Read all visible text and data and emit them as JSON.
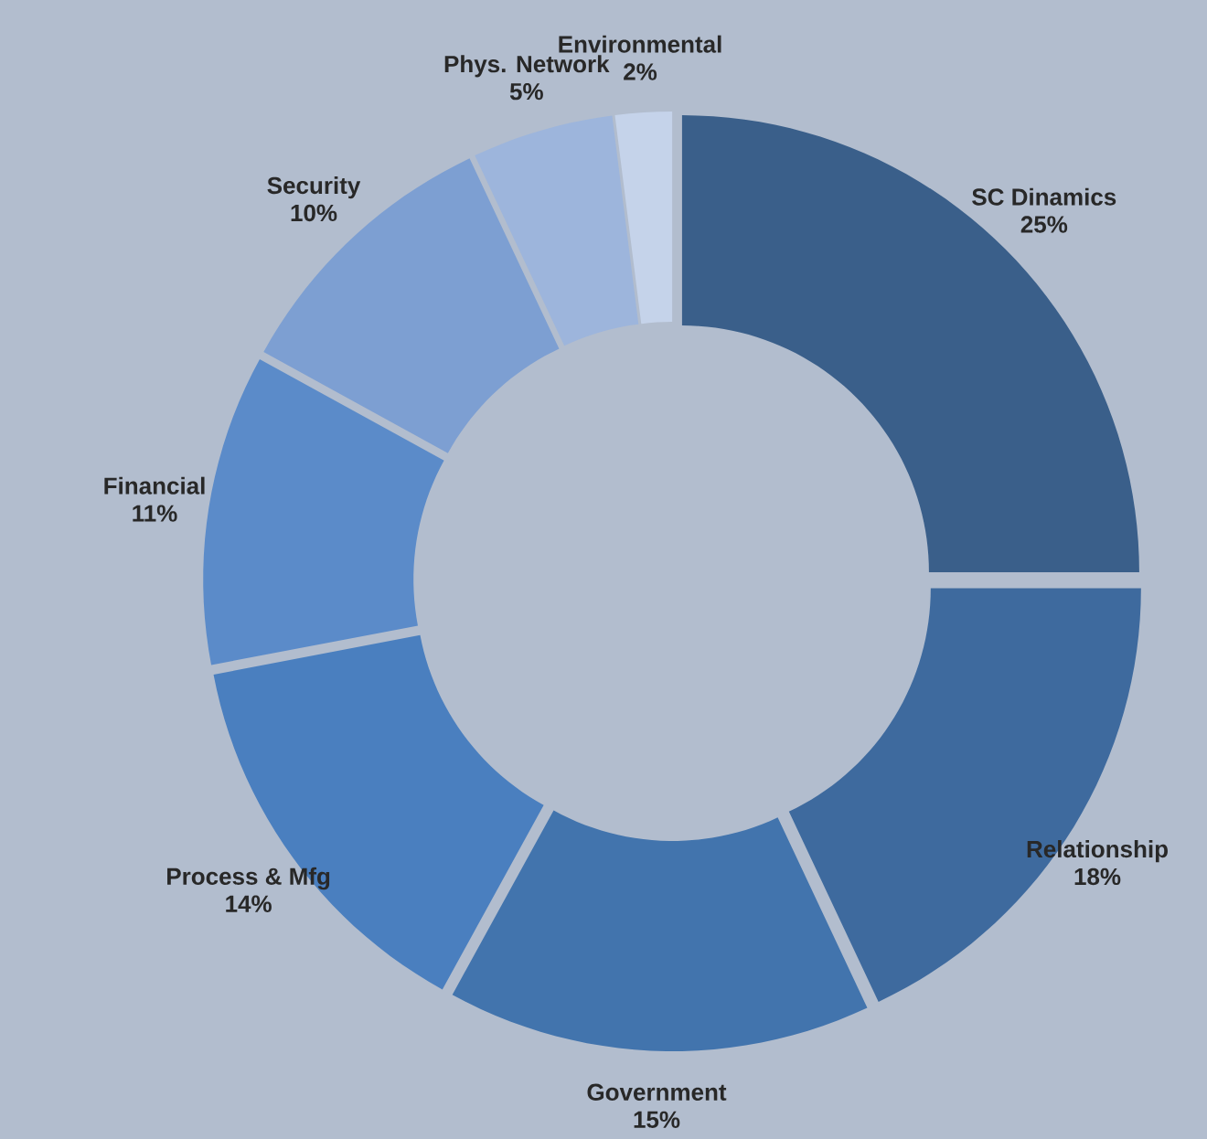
{
  "chart_data": {
    "type": "donut",
    "categories": [
      "SC Dinamics",
      "Relationship",
      "Government",
      "Process & Mfg",
      "Financial",
      "Security",
      "Phys. Network",
      "Environmental"
    ],
    "values": [
      25,
      18,
      15,
      14,
      11,
      10,
      5,
      2
    ],
    "value_labels": [
      "25%",
      "18%",
      "15%",
      "14%",
      "11%",
      "10%",
      "5%",
      "2%"
    ],
    "colors": [
      "#3a5f8a",
      "#3e6a9e",
      "#4274ad",
      "#4a7fbf",
      "#5b8bc9",
      "#7d9fd2",
      "#9db5dc",
      "#c5d3ea"
    ]
  }
}
